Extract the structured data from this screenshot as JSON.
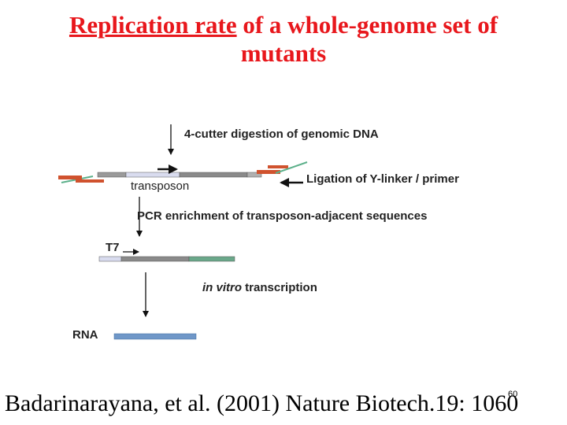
{
  "title": {
    "line1_underlined": "Replication rate",
    "line1_rest": " of a whole-genome set of",
    "line2": "mutants"
  },
  "diagram": {
    "step1": "4-cutter digestion of genomic DNA",
    "transposon": "transposon",
    "step2": "Ligation of Y-linker / primer",
    "step3": "PCR enrichment of transposon-adjacent sequences",
    "t7": "T7",
    "step4_italic": "in vitro",
    "step4_rest": " transcription",
    "rna": "RNA"
  },
  "citation": "Badarinarayana, et al. (2001) Nature Biotech.19: 1060",
  "slide_number": "60",
  "colors": {
    "title": "#e8171c",
    "adapter": "#d0522e",
    "green_linker": "#5cb08a",
    "rna_bar": "#6f97c8"
  }
}
